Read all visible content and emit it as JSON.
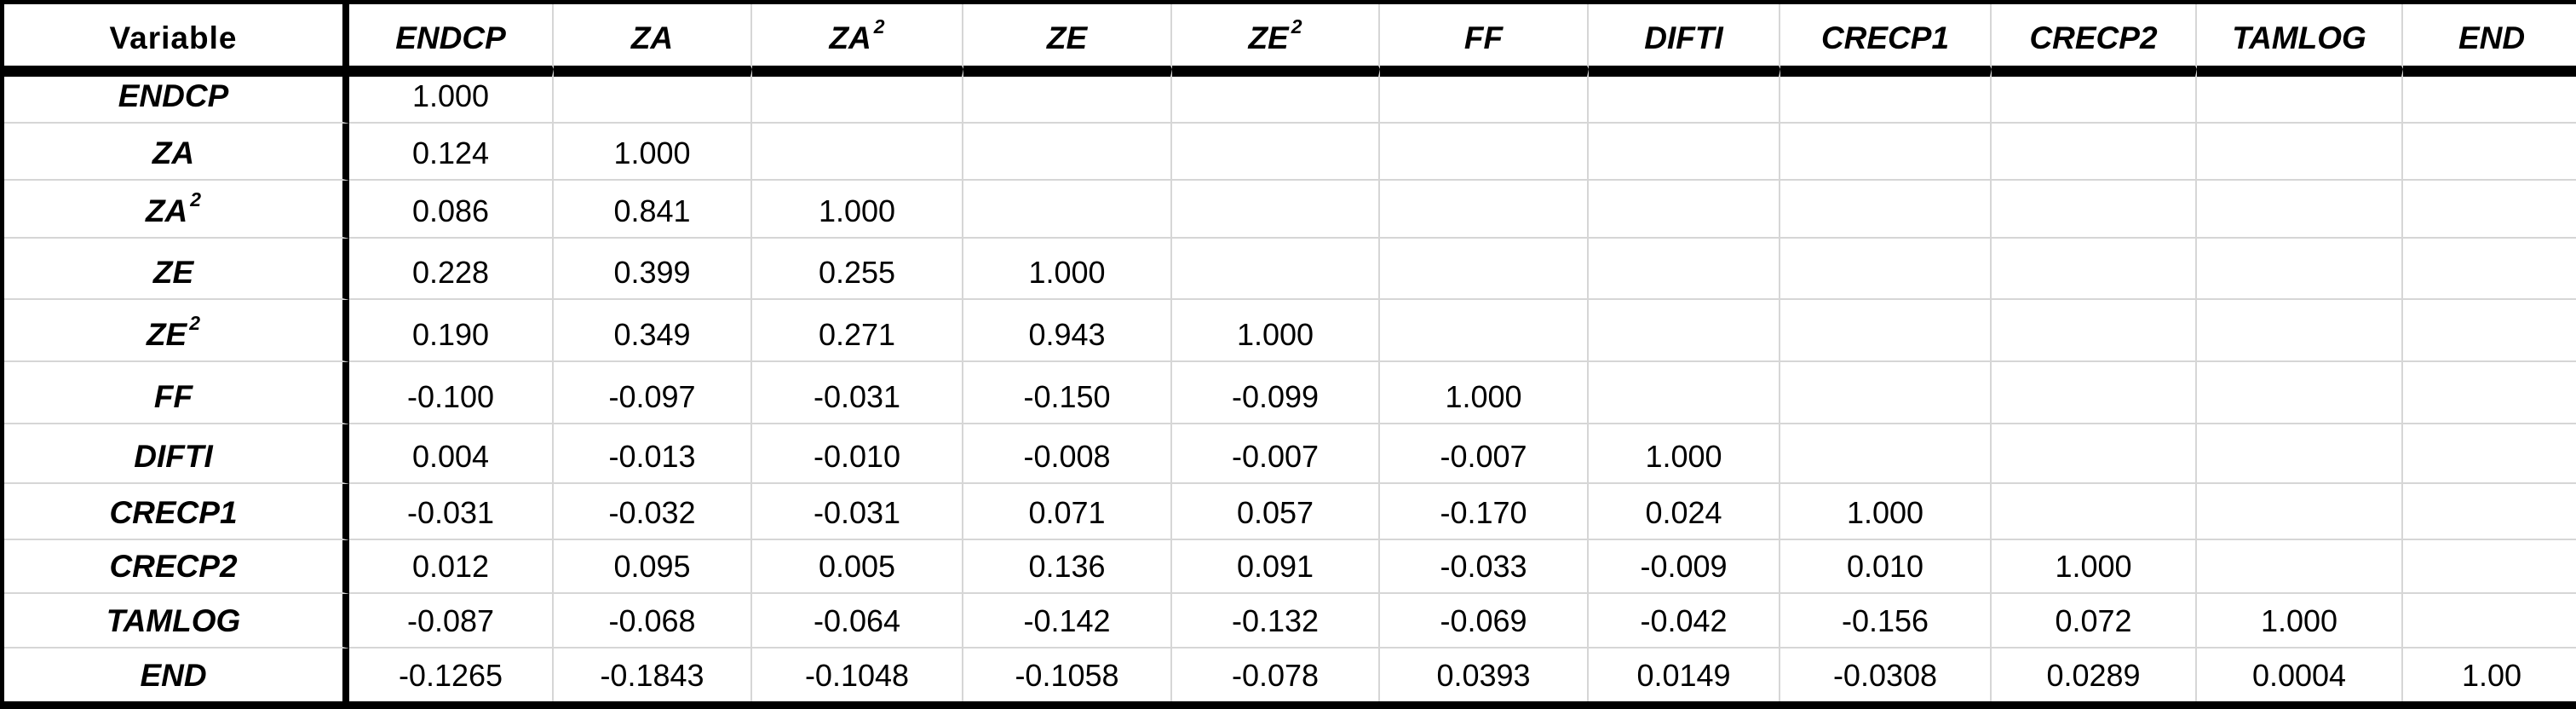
{
  "table": {
    "corner_label": "Variable",
    "columns": [
      {
        "text": "ENDCP",
        "sup": ""
      },
      {
        "text": "ZA",
        "sup": ""
      },
      {
        "text": "ZA",
        "sup": "2"
      },
      {
        "text": "ZE",
        "sup": ""
      },
      {
        "text": "ZE",
        "sup": "2"
      },
      {
        "text": "FF",
        "sup": ""
      },
      {
        "text": "DIFTI",
        "sup": ""
      },
      {
        "text": "CRECP1",
        "sup": ""
      },
      {
        "text": "CRECP2",
        "sup": ""
      },
      {
        "text": "TAMLOG",
        "sup": ""
      },
      {
        "text": "END",
        "sup": ""
      }
    ],
    "rows": [
      {
        "label": "ENDCP",
        "sup": "",
        "values": [
          "1.000",
          "",
          "",
          "",
          "",
          "",
          "",
          "",
          "",
          "",
          ""
        ]
      },
      {
        "label": "ZA",
        "sup": "",
        "values": [
          "0.124",
          "1.000",
          "",
          "",
          "",
          "",
          "",
          "",
          "",
          "",
          ""
        ]
      },
      {
        "label": "ZA",
        "sup": "2",
        "values": [
          "0.086",
          "0.841",
          "1.000",
          "",
          "",
          "",
          "",
          "",
          "",
          "",
          ""
        ]
      },
      {
        "label": "ZE",
        "sup": "",
        "values": [
          "0.228",
          "0.399",
          "0.255",
          "1.000",
          "",
          "",
          "",
          "",
          "",
          "",
          ""
        ]
      },
      {
        "label": "ZE",
        "sup": "2",
        "values": [
          "0.190",
          "0.349",
          "0.271",
          "0.943",
          "1.000",
          "",
          "",
          "",
          "",
          "",
          ""
        ]
      },
      {
        "label": "FF",
        "sup": "",
        "values": [
          "-0.100",
          "-0.097",
          "-0.031",
          "-0.150",
          "-0.099",
          "1.000",
          "",
          "",
          "",
          "",
          ""
        ]
      },
      {
        "label": "DIFTI",
        "sup": "",
        "values": [
          "0.004",
          "-0.013",
          "-0.010",
          "-0.008",
          "-0.007",
          "-0.007",
          "1.000",
          "",
          "",
          "",
          ""
        ]
      },
      {
        "label": "CRECP1",
        "sup": "",
        "values": [
          "-0.031",
          "-0.032",
          "-0.031",
          "0.071",
          "0.057",
          "-0.170",
          "0.024",
          "1.000",
          "",
          "",
          ""
        ]
      },
      {
        "label": "CRECP2",
        "sup": "",
        "values": [
          "0.012",
          "0.095",
          "0.005",
          "0.136",
          "0.091",
          "-0.033",
          "-0.009",
          "0.010",
          "1.000",
          "",
          ""
        ]
      },
      {
        "label": "TAMLOG",
        "sup": "",
        "values": [
          "-0.087",
          "-0.068",
          "-0.064",
          "-0.142",
          "-0.132",
          "-0.069",
          "-0.042",
          "-0.156",
          "0.072",
          "1.000",
          ""
        ]
      },
      {
        "label": "END",
        "sup": "",
        "values": [
          "-0.1265",
          "-0.1843",
          "-0.1048",
          "-0.1058",
          "-0.078",
          "0.0393",
          "0.0149",
          "-0.0308",
          "0.0289",
          "0.0004",
          "1.00"
        ]
      }
    ]
  },
  "chart_data": {
    "type": "table",
    "columns": [
      "Variable",
      "ENDCP",
      "ZA",
      "ZA^2",
      "ZE",
      "ZE^2",
      "FF",
      "DIFTI",
      "CRECP1",
      "CRECP2",
      "TAMLOG",
      "END"
    ],
    "row_labels": [
      "ENDCP",
      "ZA",
      "ZA^2",
      "ZE",
      "ZE^2",
      "FF",
      "DIFTI",
      "CRECP1",
      "CRECP2",
      "TAMLOG",
      "END"
    ],
    "values": [
      [
        1.0,
        null,
        null,
        null,
        null,
        null,
        null,
        null,
        null,
        null,
        null
      ],
      [
        0.124,
        1.0,
        null,
        null,
        null,
        null,
        null,
        null,
        null,
        null,
        null
      ],
      [
        0.086,
        0.841,
        1.0,
        null,
        null,
        null,
        null,
        null,
        null,
        null,
        null
      ],
      [
        0.228,
        0.399,
        0.255,
        1.0,
        null,
        null,
        null,
        null,
        null,
        null,
        null
      ],
      [
        0.19,
        0.349,
        0.271,
        0.943,
        1.0,
        null,
        null,
        null,
        null,
        null,
        null
      ],
      [
        -0.1,
        -0.097,
        -0.031,
        -0.15,
        -0.099,
        1.0,
        null,
        null,
        null,
        null,
        null
      ],
      [
        0.004,
        -0.013,
        -0.01,
        -0.008,
        -0.007,
        -0.007,
        1.0,
        null,
        null,
        null,
        null
      ],
      [
        -0.031,
        -0.032,
        -0.031,
        0.071,
        0.057,
        -0.17,
        0.024,
        1.0,
        null,
        null,
        null
      ],
      [
        0.012,
        0.095,
        0.005,
        0.136,
        0.091,
        -0.033,
        -0.009,
        0.01,
        1.0,
        null,
        null
      ],
      [
        -0.087,
        -0.068,
        -0.064,
        -0.142,
        -0.132,
        -0.069,
        -0.042,
        -0.156,
        0.072,
        1.0,
        null
      ],
      [
        -0.1265,
        -0.1843,
        -0.1048,
        -0.1058,
        -0.078,
        0.0393,
        0.0149,
        -0.0308,
        0.0289,
        0.0004,
        1.0
      ]
    ],
    "layout_hints": {
      "matrix_shape": "lower-triangular",
      "grid": true,
      "header_style": "bold-italic"
    }
  },
  "colors": {
    "background": "#ffffff",
    "border": "#000000",
    "gridline": "#d6d6d6",
    "text": "#000000"
  }
}
